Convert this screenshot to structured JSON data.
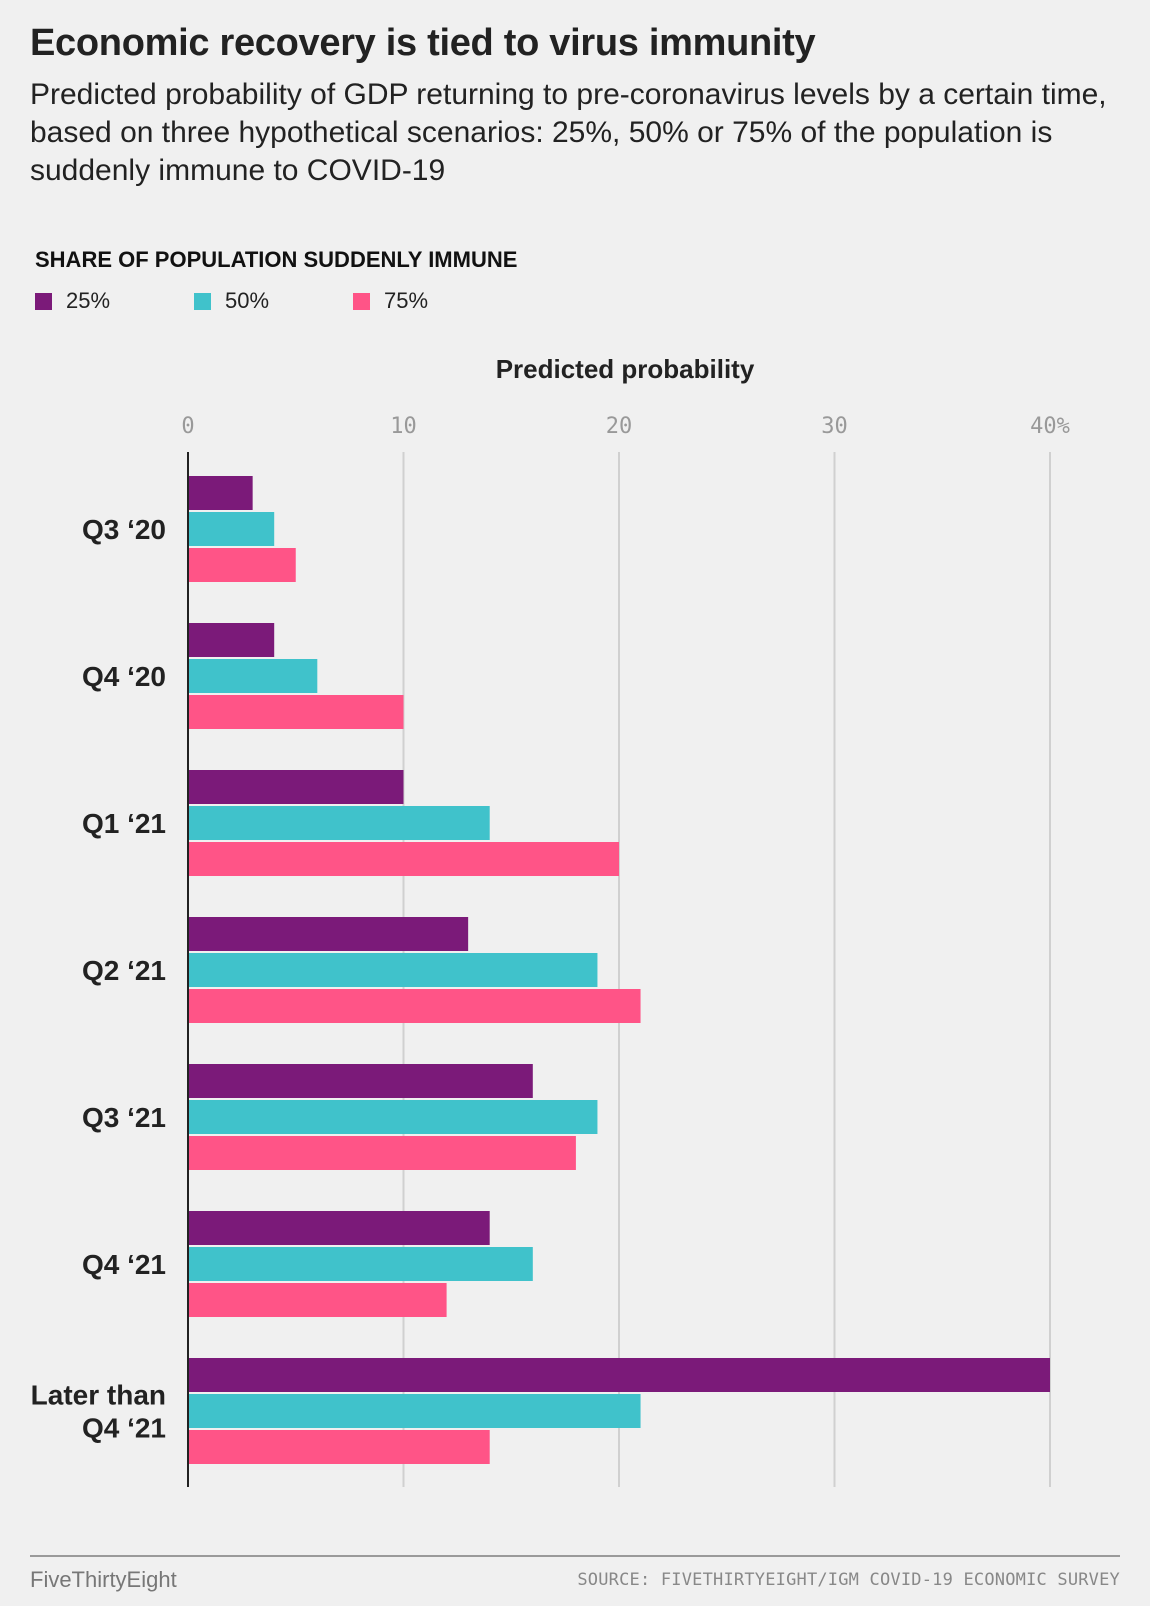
{
  "header": {
    "title": "Economic recovery is tied to virus immunity",
    "subtitle": "Predicted probability of GDP returning to pre-coronavirus levels by a certain time, based on three hypothetical scenarios: 25%, 50% or 75% of the population is suddenly immune to COVID-19"
  },
  "legend": {
    "title": "SHARE OF POPULATION SUDDENLY IMMUNE",
    "items": [
      {
        "label": "25%",
        "color": "#7b1a79"
      },
      {
        "label": "50%",
        "color": "#40c2cb"
      },
      {
        "label": "75%",
        "color": "#ff5487"
      }
    ]
  },
  "footer": {
    "brand": "FiveThirtyEight",
    "source": "SOURCE: FIVETHIRTYEIGHT/IGM COVID-19 ECONOMIC SURVEY"
  },
  "chart_data": {
    "type": "bar",
    "orientation": "horizontal",
    "title": "Economic recovery is tied to virus immunity",
    "xlabel": "Predicted probability",
    "ylabel": "",
    "xlim": [
      0,
      40
    ],
    "xticks": [
      0,
      10,
      20,
      30,
      40
    ],
    "xtick_labels": [
      "0",
      "10",
      "20",
      "30",
      "40%"
    ],
    "grid": true,
    "legend_position": "top-left",
    "categories": [
      "Q3 ‘20",
      "Q4 ‘20",
      "Q1 ‘21",
      "Q2 ‘21",
      "Q3 ‘21",
      "Q4 ‘21",
      "Later than Q4 ‘21"
    ],
    "category_lines": [
      [
        "Q3 ‘20"
      ],
      [
        "Q4 ‘20"
      ],
      [
        "Q1 ‘21"
      ],
      [
        "Q2 ‘21"
      ],
      [
        "Q3 ‘21"
      ],
      [
        "Q4 ‘21"
      ],
      [
        "Later than",
        "Q4 ‘21"
      ]
    ],
    "series": [
      {
        "name": "25%",
        "color": "#7b1a79",
        "values": [
          3,
          4,
          10,
          13,
          16,
          14,
          40
        ]
      },
      {
        "name": "50%",
        "color": "#40c2cb",
        "values": [
          4,
          6,
          14,
          19,
          19,
          16,
          21
        ]
      },
      {
        "name": "75%",
        "color": "#ff5487",
        "values": [
          5,
          10,
          20,
          21,
          18,
          12,
          14
        ]
      }
    ]
  }
}
